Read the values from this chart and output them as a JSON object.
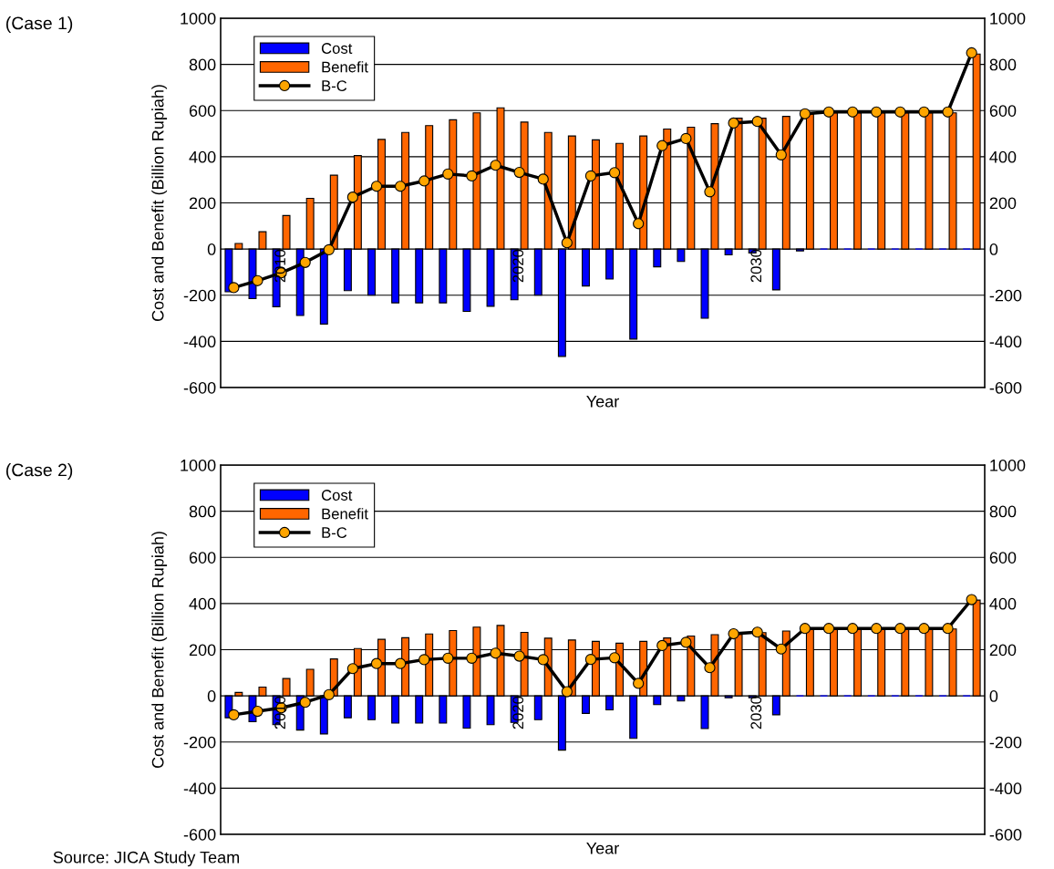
{
  "chart_data": [
    {
      "type": "bar",
      "xlabel": "Year",
      "ylabel": "Cost and Benefit (Billion Rupiah)",
      "annotations": [
        "(Case 1)"
      ],
      "categories": [
        null,
        null,
        "2010",
        null,
        null,
        null,
        null,
        null,
        null,
        null,
        null,
        null,
        "2020",
        null,
        null,
        null,
        null,
        null,
        null,
        null,
        null,
        null,
        "2030",
        null,
        null,
        null,
        null,
        null,
        null,
        null,
        null,
        null
      ],
      "series": [
        {
          "name": "Cost",
          "color": "#0000ff",
          "values": [
            -185,
            -215,
            -250,
            -288,
            -325,
            -180,
            -200,
            -233,
            -233,
            -233,
            -270,
            -248,
            -220,
            -200,
            -465,
            -160,
            -130,
            -390,
            -77,
            -54,
            -300,
            -25,
            -17,
            -177,
            -8,
            0,
            0,
            0,
            0,
            0,
            0,
            0
          ]
        },
        {
          "name": "Benefit",
          "color": "#ff6600",
          "values": [
            24,
            75,
            145,
            220,
            320,
            405,
            475,
            505,
            535,
            560,
            590,
            612,
            550,
            505,
            490,
            473,
            458,
            490,
            520,
            528,
            543,
            567,
            567,
            575,
            585,
            590,
            590,
            590,
            590,
            590,
            590,
            845
          ]
        },
        {
          "name": "B-C",
          "type": "line",
          "color": "#000000",
          "marker": "circle",
          "values": [
            -167,
            -137,
            -103,
            -58,
            -3,
            225,
            272,
            272,
            295,
            325,
            317,
            363,
            332,
            303,
            27,
            317,
            331,
            110,
            448,
            479,
            248,
            546,
            553,
            408,
            586,
            594,
            594,
            594,
            594,
            594,
            594,
            850
          ]
        }
      ],
      "ylim": [
        -600,
        1000
      ],
      "yticks": [
        -600,
        -400,
        -200,
        0,
        200,
        400,
        600,
        800,
        1000
      ],
      "y2lim": [
        -600,
        1000
      ],
      "y2ticks": [
        -600,
        -400,
        -200,
        0,
        200,
        400,
        600,
        800,
        1000
      ],
      "grid": "y",
      "legend": "top left"
    },
    {
      "type": "bar",
      "xlabel": "Year",
      "ylabel": "Cost and Benefit (Billion Rupiah)",
      "annotations": [
        "(Case 2)",
        "Source: JICA Study Team"
      ],
      "categories": [
        null,
        null,
        "2010",
        null,
        null,
        null,
        null,
        null,
        null,
        null,
        null,
        null,
        "2020",
        null,
        null,
        null,
        null,
        null,
        null,
        null,
        null,
        null,
        "2030",
        null,
        null,
        null,
        null,
        null,
        null,
        null,
        null,
        null
      ],
      "series": [
        {
          "name": "Cost",
          "color": "#0000ff",
          "values": [
            -95,
            -112,
            -125,
            -148,
            -165,
            -95,
            -103,
            -118,
            -118,
            -118,
            -140,
            -125,
            -115,
            -103,
            -235,
            -76,
            -61,
            -184,
            -38,
            -22,
            -142,
            -8,
            -8,
            -82,
            0,
            0,
            0,
            0,
            0,
            0,
            0,
            0
          ]
        },
        {
          "name": "Benefit",
          "color": "#ff6600",
          "values": [
            15,
            38,
            75,
            115,
            160,
            205,
            245,
            252,
            268,
            283,
            298,
            305,
            275,
            250,
            242,
            236,
            228,
            236,
            251,
            259,
            265,
            266,
            274,
            281,
            290,
            290,
            290,
            290,
            290,
            290,
            290,
            415
          ]
        },
        {
          "name": "B-C",
          "type": "line",
          "color": "#000000",
          "marker": "circle",
          "values": [
            -82,
            -67,
            -52,
            -28,
            5,
            118,
            140,
            140,
            157,
            163,
            163,
            185,
            172,
            157,
            18,
            158,
            165,
            54,
            218,
            232,
            122,
            269,
            276,
            203,
            292,
            292,
            292,
            292,
            292,
            292,
            292,
            417
          ]
        }
      ],
      "ylim": [
        -600,
        1000
      ],
      "yticks": [
        -600,
        -400,
        -200,
        0,
        200,
        400,
        600,
        800,
        1000
      ],
      "y2lim": [
        -600,
        1000
      ],
      "y2ticks": [
        -600,
        -400,
        -200,
        0,
        200,
        400,
        600,
        800,
        1000
      ],
      "grid": "y",
      "legend": "top left"
    }
  ]
}
